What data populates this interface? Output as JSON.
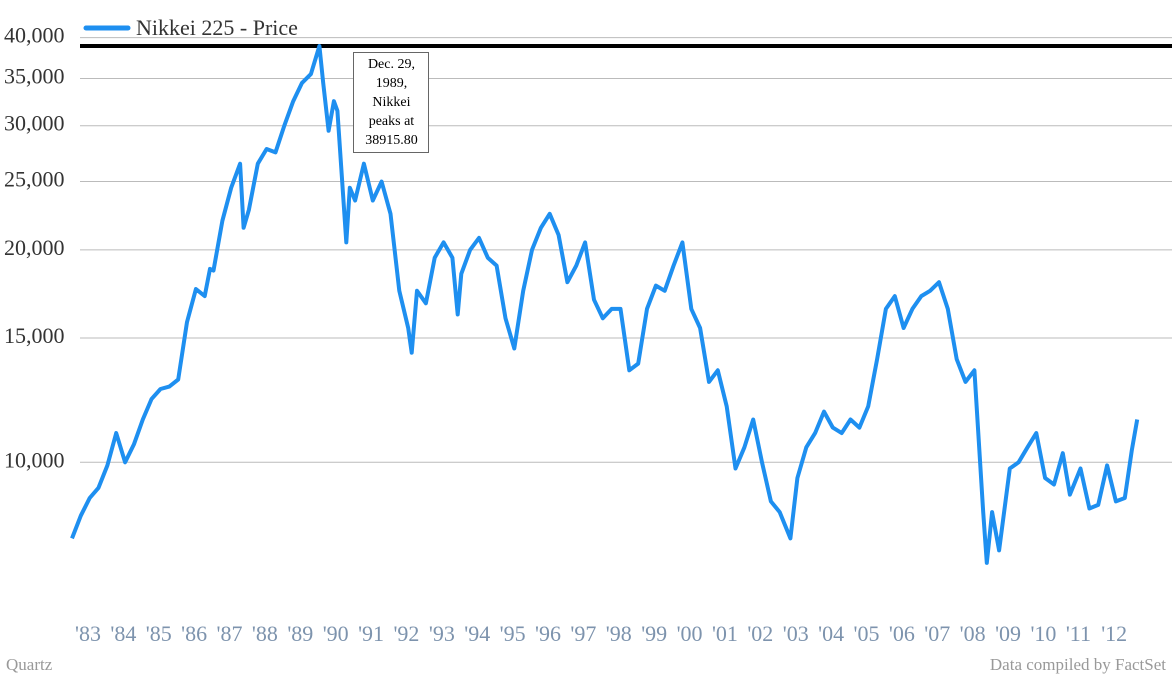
{
  "chart_data": {
    "type": "line",
    "log_scale": true,
    "grid": true,
    "legend": "top-left",
    "series": [
      {
        "name": "Nikkei 225 - Price",
        "color": "#1e8ff0",
        "x": [
          1983.0,
          1983.25,
          1983.5,
          1983.75,
          1984.0,
          1984.25,
          1984.5,
          1984.75,
          1985.0,
          1985.25,
          1985.5,
          1985.75,
          1986.0,
          1986.25,
          1986.5,
          1986.75,
          1986.9,
          1987.0,
          1987.25,
          1987.5,
          1987.75,
          1987.85,
          1988.0,
          1988.25,
          1988.5,
          1988.75,
          1989.0,
          1989.25,
          1989.5,
          1989.75,
          1989.99,
          1990.1,
          1990.25,
          1990.4,
          1990.5,
          1990.75,
          1990.85,
          1991.0,
          1991.25,
          1991.5,
          1991.75,
          1992.0,
          1992.25,
          1992.5,
          1992.6,
          1992.75,
          1993.0,
          1993.25,
          1993.5,
          1993.75,
          1993.9,
          1994.0,
          1994.25,
          1994.5,
          1994.75,
          1995.0,
          1995.25,
          1995.5,
          1995.75,
          1996.0,
          1996.25,
          1996.5,
          1996.75,
          1997.0,
          1997.25,
          1997.5,
          1997.75,
          1998.0,
          1998.25,
          1998.5,
          1998.75,
          1999.0,
          1999.25,
          1999.5,
          1999.75,
          2000.0,
          2000.25,
          2000.5,
          2000.75,
          2001.0,
          2001.25,
          2001.5,
          2001.75,
          2002.0,
          2002.25,
          2002.5,
          2002.75,
          2003.0,
          2003.3,
          2003.5,
          2003.75,
          2004.0,
          2004.25,
          2004.5,
          2004.75,
          2005.0,
          2005.25,
          2005.5,
          2005.75,
          2006.0,
          2006.25,
          2006.5,
          2006.75,
          2007.0,
          2007.25,
          2007.5,
          2007.75,
          2008.0,
          2008.25,
          2008.5,
          2008.75,
          2008.85,
          2009.0,
          2009.2,
          2009.5,
          2009.75,
          2010.0,
          2010.25,
          2010.5,
          2010.75,
          2011.0,
          2011.2,
          2011.5,
          2011.75,
          2012.0,
          2012.25,
          2012.5,
          2012.75,
          2012.95,
          2013.1
        ],
        "values": [
          7800,
          8400,
          8900,
          9200,
          9900,
          11000,
          10000,
          10600,
          11500,
          12300,
          12700,
          12800,
          13100,
          15800,
          17600,
          17200,
          18800,
          18700,
          22000,
          24500,
          26500,
          21500,
          22800,
          26500,
          27800,
          27500,
          30000,
          32500,
          34500,
          35500,
          38915.8,
          34500,
          29500,
          32500,
          31500,
          20500,
          24500,
          23500,
          26500,
          23500,
          25000,
          22500,
          17500,
          15500,
          14300,
          17500,
          16800,
          19500,
          20500,
          19500,
          16200,
          18500,
          20000,
          20800,
          19500,
          19000,
          16000,
          14500,
          17500,
          20000,
          21500,
          22500,
          21000,
          18000,
          19000,
          20500,
          17000,
          16000,
          16500,
          16500,
          13500,
          13800,
          16500,
          17800,
          17500,
          19000,
          20500,
          16500,
          15500,
          13000,
          13500,
          12000,
          9800,
          10500,
          11500,
          10000,
          8800,
          8500,
          7800,
          9500,
          10500,
          11000,
          11800,
          11200,
          11000,
          11500,
          11200,
          12000,
          14000,
          16500,
          17200,
          15500,
          16500,
          17200,
          17500,
          18000,
          16500,
          14000,
          13000,
          13500,
          8500,
          7200,
          8500,
          7500,
          9800,
          10000,
          10500,
          11000,
          9500,
          9300,
          10300,
          9000,
          9800,
          8600,
          8700,
          9900,
          8800,
          8900,
          10400,
          11500
        ]
      }
    ],
    "peak_line": {
      "value": 38915.8,
      "color": "#000000"
    },
    "annotation": "Dec. 29, 1989, Nikkei peaks at 38915.80",
    "xlim": [
      1983,
      2014
    ],
    "xticks": [
      {
        "value": 1983,
        "label": "'83"
      },
      {
        "value": 1984,
        "label": "'84"
      },
      {
        "value": 1985,
        "label": "'85"
      },
      {
        "value": 1986,
        "label": "'86"
      },
      {
        "value": 1987,
        "label": "'87"
      },
      {
        "value": 1988,
        "label": "'88"
      },
      {
        "value": 1989,
        "label": "'89"
      },
      {
        "value": 1990,
        "label": "'90"
      },
      {
        "value": 1991,
        "label": "'91"
      },
      {
        "value": 1992,
        "label": "'92"
      },
      {
        "value": 1993,
        "label": "'93"
      },
      {
        "value": 1994,
        "label": "'94"
      },
      {
        "value": 1995,
        "label": "'95"
      },
      {
        "value": 1996,
        "label": "'96"
      },
      {
        "value": 1997,
        "label": "'97"
      },
      {
        "value": 1998,
        "label": "'98"
      },
      {
        "value": 1999,
        "label": "'99"
      },
      {
        "value": 2000,
        "label": "'00"
      },
      {
        "value": 2001,
        "label": "'01"
      },
      {
        "value": 2002,
        "label": "'02"
      },
      {
        "value": 2003,
        "label": "'03"
      },
      {
        "value": 2004,
        "label": "'04"
      },
      {
        "value": 2005,
        "label": "'05"
      },
      {
        "value": 2006,
        "label": "'06"
      },
      {
        "value": 2007,
        "label": "'07"
      },
      {
        "value": 2008,
        "label": "'08"
      },
      {
        "value": 2009,
        "label": "'09"
      },
      {
        "value": 2010,
        "label": "'10"
      },
      {
        "value": 2011,
        "label": "'11"
      },
      {
        "value": 2012,
        "label": "'12"
      }
    ],
    "ylim": [
      6400,
      41000
    ],
    "yticks": [
      {
        "value": 10000,
        "label": "10,000"
      },
      {
        "value": 15000,
        "label": "15,000"
      },
      {
        "value": 20000,
        "label": "20,000"
      },
      {
        "value": 25000,
        "label": "25,000"
      },
      {
        "value": 30000,
        "label": "30,000"
      },
      {
        "value": 35000,
        "label": "35,000"
      },
      {
        "value": 40000,
        "label": "40,000"
      }
    ],
    "source_left": "Quartz",
    "source_right": "Data compiled by FactSet"
  }
}
